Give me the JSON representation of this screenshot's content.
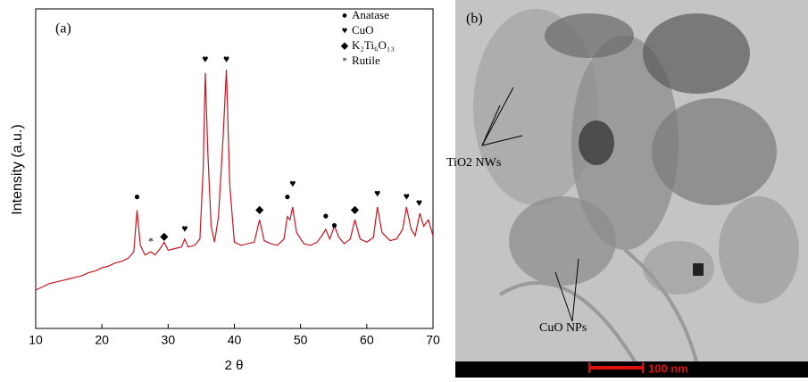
{
  "chart_data": {
    "type": "line",
    "panel_label": "(a)",
    "xlabel": "2 θ",
    "ylabel": "Intensity (a.u.)",
    "xlim": [
      10,
      70
    ],
    "xticks": [
      10,
      20,
      30,
      40,
      50,
      60,
      70
    ],
    "ylim": [
      0,
      100
    ],
    "series": [
      {
        "color": "#c8141e",
        "x": [
          10,
          11,
          12,
          13,
          14,
          15,
          16,
          17,
          18,
          19,
          20,
          21,
          22,
          23,
          24,
          24.8,
          25.3,
          25.8,
          26.5,
          27.4,
          28,
          28.8,
          29.4,
          30,
          31,
          32,
          32.5,
          33,
          34,
          34.8,
          35.3,
          35.6,
          36,
          36.5,
          37,
          37.6,
          38.3,
          38.8,
          39.3,
          40,
          41,
          42,
          43,
          43.8,
          44.5,
          45.5,
          46.5,
          47.5,
          48,
          48.4,
          48.8,
          49.4,
          50.5,
          51.5,
          52.5,
          53.2,
          53.8,
          54.4,
          55.1,
          55.8,
          56.6,
          57.5,
          58.2,
          59,
          60,
          61,
          61.6,
          62.3,
          63.5,
          64.5,
          65.4,
          66,
          66.7,
          67.3,
          68,
          68.6,
          69.3,
          70
        ],
        "values": [
          12,
          13,
          14,
          14.5,
          15,
          15.5,
          16,
          16.5,
          17.5,
          18,
          19,
          19.5,
          20.5,
          21,
          22,
          24,
          37,
          26,
          23,
          24,
          23,
          25,
          27,
          24.5,
          25,
          25.5,
          28,
          25.5,
          26,
          28,
          50,
          80,
          55,
          32,
          27,
          35,
          60,
          81,
          45,
          27,
          26,
          26.5,
          27,
          34,
          27.5,
          26.5,
          26,
          28,
          35,
          34,
          38,
          30,
          26.5,
          26,
          27,
          29,
          31,
          28,
          32,
          28.5,
          26.5,
          28,
          34,
          28,
          27,
          28.5,
          38,
          30,
          27.5,
          28,
          31,
          38,
          31,
          29,
          36,
          32,
          34,
          29
        ]
      }
    ],
    "phases": [
      {
        "name": "Anatase",
        "symbol": "●",
        "x": [
          25.3,
          48.0,
          53.8,
          55.1
        ],
        "y": [
          41,
          41,
          35,
          32
        ]
      },
      {
        "name": "CuO",
        "symbol": "♥",
        "x": [
          32.5,
          35.6,
          38.8,
          48.8,
          61.6,
          66.0,
          67.9
        ],
        "y": [
          31,
          84,
          84,
          45,
          42,
          41,
          39
        ]
      },
      {
        "name": "K₂Ti₆O₁₃",
        "symbol": "◆",
        "x": [
          29.4,
          43.8,
          58.2
        ],
        "y": [
          28.5,
          37,
          37
        ]
      },
      {
        "name": "Rutile",
        "symbol": "*",
        "x": [
          27.4
        ],
        "y": [
          27
        ]
      }
    ]
  },
  "image_panel": {
    "panel_label": "(b)",
    "labels": [
      "TiO2 NWs",
      "CuO NPs"
    ],
    "scale_bar": "100 nm"
  }
}
